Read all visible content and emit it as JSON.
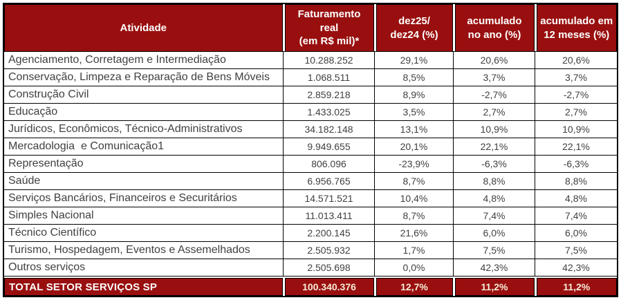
{
  "chart_data": {
    "type": "table",
    "columns": [
      "Atividade",
      "Faturamento\nreal\n(em R$ mil)*",
      "dez25/\ndez24 (%)",
      "acumulado\nno ano (%)",
      "acumulado em\n12 meses (%)"
    ],
    "rows": [
      [
        "Agenciamento, Corretagem e Intermediação",
        "10.288.252",
        "29,1%",
        "20,6%",
        "20,6%"
      ],
      [
        "Conservação, Limpeza e Reparação de Bens Móveis",
        "1.068.511",
        "8,5%",
        "3,7%",
        "3,7%"
      ],
      [
        "Construção Civil",
        "2.859.218",
        "8,9%",
        "-2,7%",
        "-2,7%"
      ],
      [
        "Educação",
        "1.433.025",
        "3,5%",
        "2,7%",
        "2,7%"
      ],
      [
        "Jurídicos, Econômicos, Técnico-Administrativos",
        "34.182.148",
        "13,1%",
        "10,9%",
        "10,9%"
      ],
      [
        "Mercadologia  e Comunicação1",
        "9.949.655",
        "20,1%",
        "22,1%",
        "22,1%"
      ],
      [
        "Representação",
        "806.096",
        "-23,9%",
        "-6,3%",
        "-6,3%"
      ],
      [
        "Saúde",
        "6.956.765",
        "8,7%",
        "8,8%",
        "8,8%"
      ],
      [
        "Serviços Bancários, Financeiros e Securitários",
        "14.571.521",
        "10,4%",
        "4,8%",
        "4,8%"
      ],
      [
        "Simples Nacional",
        "11.013.411",
        "8,7%",
        "7,4%",
        "7,4%"
      ],
      [
        "Técnico Científico",
        "2.200.145",
        "21,6%",
        "6,0%",
        "6,0%"
      ],
      [
        "Turismo, Hospedagem, Eventos e Assemelhados",
        "2.505.932",
        "1,7%",
        "7,5%",
        "7,5%"
      ],
      [
        "Outros serviços",
        "2.505.698",
        "0,0%",
        "42,3%",
        "42,3%"
      ]
    ],
    "total_row": [
      "TOTAL SETOR SERVIÇOS SP",
      "100.340.376",
      "12,7%",
      "11,2%",
      "11,2%"
    ]
  },
  "colors": {
    "header_bg": "#990f0f",
    "header_text": "#ffffff",
    "body_text": "#404040",
    "grid_line": "#000000",
    "total_value_text": "#f8eed8"
  }
}
